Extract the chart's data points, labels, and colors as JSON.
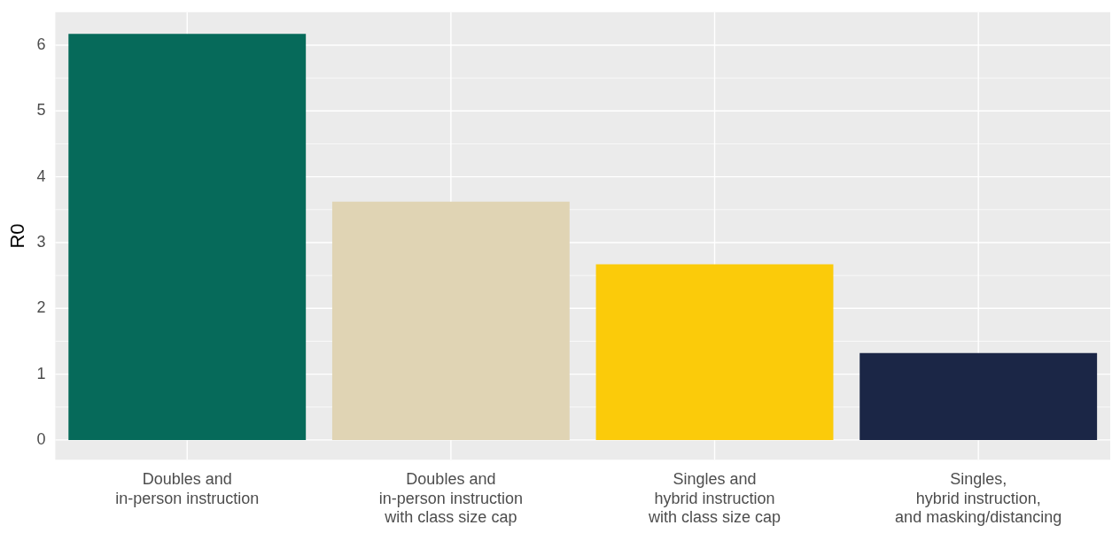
{
  "chart_data": {
    "type": "bar",
    "ylabel": "R0",
    "categories": [
      "Doubles and\nin-person instruction",
      "Doubles and\nin-person instruction\nwith class size cap",
      "Singles and\nhybrid instruction\nwith class size cap",
      "Singles,\nhybrid instruction,\nand masking/distancing"
    ],
    "values": [
      6.17,
      3.62,
      2.67,
      1.32
    ],
    "colors": [
      "#066a5a",
      "#e0d4b4",
      "#fbcb0a",
      "#1b2646"
    ],
    "ylim": [
      -0.3,
      6.5
    ],
    "yticks": [
      0,
      1,
      2,
      3,
      4,
      5,
      6
    ],
    "grid": true,
    "legend": false
  }
}
